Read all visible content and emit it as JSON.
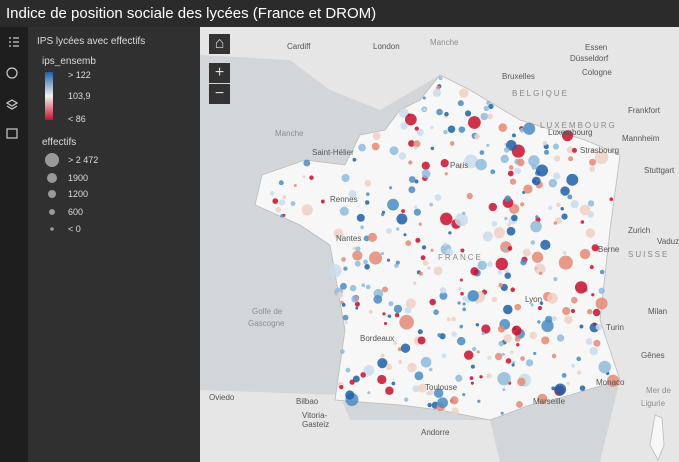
{
  "header": {
    "title": "Indice de position sociale des lycées (France et DROM)"
  },
  "legend": {
    "layer": "IPS lycées avec effectifs",
    "color_field": "ips_ensemb",
    "color_labels": [
      "> 122",
      "103,9",
      "< 86"
    ],
    "size_field": "effectifs",
    "size_labels": [
      "> 2 472",
      "1900",
      "1200",
      "600",
      "< 0"
    ]
  },
  "map": {
    "labels": [
      "Cardiff",
      "London",
      "Manche",
      "Essen",
      "Düsseldorf",
      "Bruxelles",
      "Cologne",
      "BELGIQUE",
      "Frankfort",
      "LUXEMBOURG",
      "Luxembourg",
      "Mannheim",
      "Manche",
      "Saint-Hélier",
      "Paris",
      "Strasbourg",
      "Stuttgart",
      "Rennes",
      "Nantes",
      "Zurich",
      "Vaduz",
      "Berne",
      "SUISSE",
      "FRANCE",
      "Golfe de",
      "Gascogne",
      "Milan",
      "Lyon",
      "Turin",
      "Bordeaux",
      "Gênes",
      "Oviedo",
      "Bilbao",
      "Vitoria-",
      "Gasteiz",
      "Toulouse",
      "Monaco",
      "Marseille",
      "Andorre",
      "Mer de",
      "Ligurie"
    ]
  }
}
